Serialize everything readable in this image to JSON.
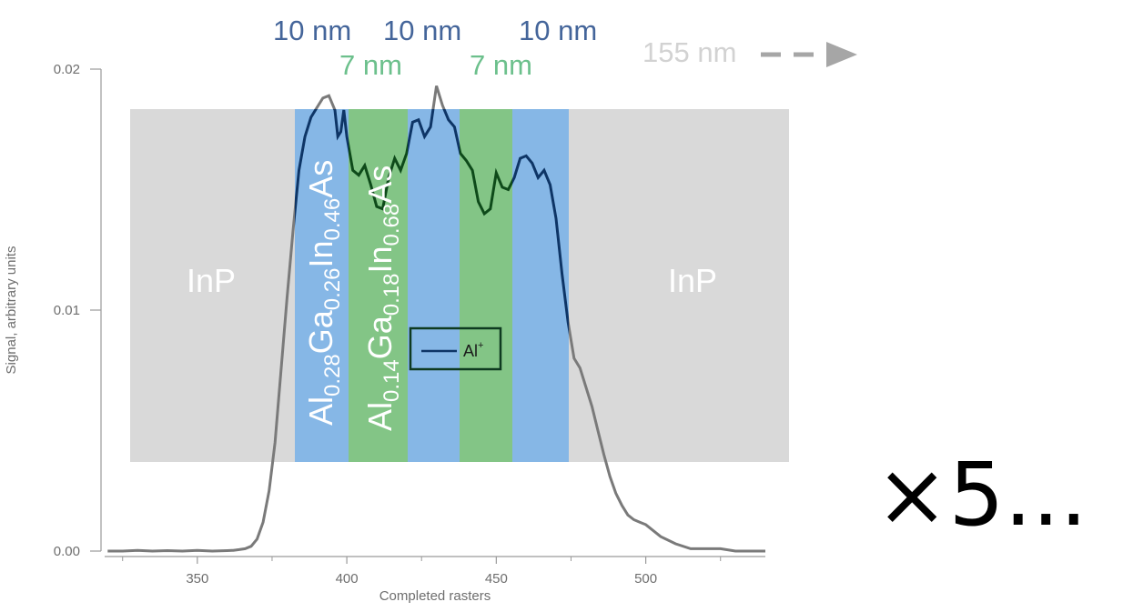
{
  "chart_data": {
    "type": "line",
    "xlabel": "Completed rasters",
    "ylabel": "Signal, arbitrary units",
    "xlim": [
      319,
      540
    ],
    "ylim": [
      0,
      0.02
    ],
    "xticks": [
      350,
      400,
      450,
      500
    ],
    "xtick_labels": [
      "350",
      "400",
      "450",
      "500"
    ],
    "yticks": [
      0,
      0.01,
      0.02
    ],
    "ytick_labels": [
      "0.00",
      "0.01",
      "0.02"
    ],
    "grid": false,
    "legend_position": "inside-center",
    "series": [
      {
        "name": "Al",
        "name_sup": "+",
        "color": "#0e3566",
        "x": [
          320,
          325,
          330,
          335,
          340,
          345,
          350,
          355,
          360,
          362,
          364,
          366,
          368,
          370,
          372,
          374,
          376,
          378,
          380,
          382,
          384,
          386,
          388,
          390,
          392,
          394,
          396,
          397,
          398,
          399,
          400,
          402,
          404,
          406,
          408,
          410,
          412,
          414,
          416,
          418,
          420,
          422,
          424,
          426,
          428,
          430,
          432,
          434,
          436,
          438,
          440,
          442,
          444,
          446,
          448,
          450,
          452,
          454,
          456,
          458,
          460,
          462,
          464,
          466,
          468,
          470,
          472,
          474,
          476,
          478,
          480,
          482,
          484,
          486,
          488,
          490,
          492,
          494,
          496,
          498,
          500,
          505,
          510,
          515,
          520,
          525,
          530,
          535,
          540
        ],
        "y": [
          0.0,
          0.0,
          3e-05,
          0.0,
          2e-05,
          0.0,
          3e-05,
          0.0,
          2e-05,
          3e-05,
          6e-05,
          0.0001,
          0.0002,
          0.0005,
          0.0012,
          0.0025,
          0.0045,
          0.0075,
          0.0105,
          0.0133,
          0.0158,
          0.0172,
          0.018,
          0.0184,
          0.0188,
          0.0189,
          0.0183,
          0.0172,
          0.0174,
          0.0183,
          0.0172,
          0.0158,
          0.0156,
          0.016,
          0.0152,
          0.0143,
          0.0142,
          0.0155,
          0.0163,
          0.0158,
          0.0165,
          0.0178,
          0.0179,
          0.0172,
          0.0176,
          0.0193,
          0.0185,
          0.0179,
          0.0176,
          0.0165,
          0.0162,
          0.0158,
          0.0145,
          0.014,
          0.0142,
          0.0157,
          0.0151,
          0.015,
          0.0155,
          0.0163,
          0.0164,
          0.0161,
          0.0155,
          0.0158,
          0.0152,
          0.0138,
          0.0115,
          0.0095,
          0.008,
          0.0076,
          0.0068,
          0.006,
          0.005,
          0.004,
          0.0031,
          0.0024,
          0.0019,
          0.0015,
          0.0013,
          0.0012,
          0.0011,
          0.0006,
          0.0003,
          0.0001,
          0.0001,
          0.0001,
          0.0,
          0.0,
          0.0
        ]
      }
    ],
    "annotations": {
      "inp_left": "InP",
      "inp_right": "InP",
      "layer1": {
        "p1": "Al",
        "s1": "0.28",
        "p2": "Ga",
        "s2": "0.26",
        "p3": "In",
        "s3": "0.46",
        "p4": "As"
      },
      "layer2": {
        "p1": "Al",
        "s1": "0.14",
        "p2": "Ga",
        "s2": "0.18",
        "p3": "In",
        "s3": "0.68",
        "p4": "As"
      },
      "thickness_blue": [
        "10 nm",
        "10 nm",
        "10 nm"
      ],
      "thickness_green": [
        "7 nm",
        "7 nm"
      ],
      "thickness_grey": "155 nm",
      "repeat": "×5..."
    },
    "colors": {
      "inp_band": "#d9d9d9",
      "blue_band": "#86b7e6",
      "green_band": "#83c586",
      "line_dark": "#0e3566",
      "line_green": "#0e4a1a",
      "line_grey": "#7a7a7a",
      "blue_text": "#44659a",
      "green_text": "#6cc08c",
      "grey_text": "#d2d2d2"
    }
  }
}
